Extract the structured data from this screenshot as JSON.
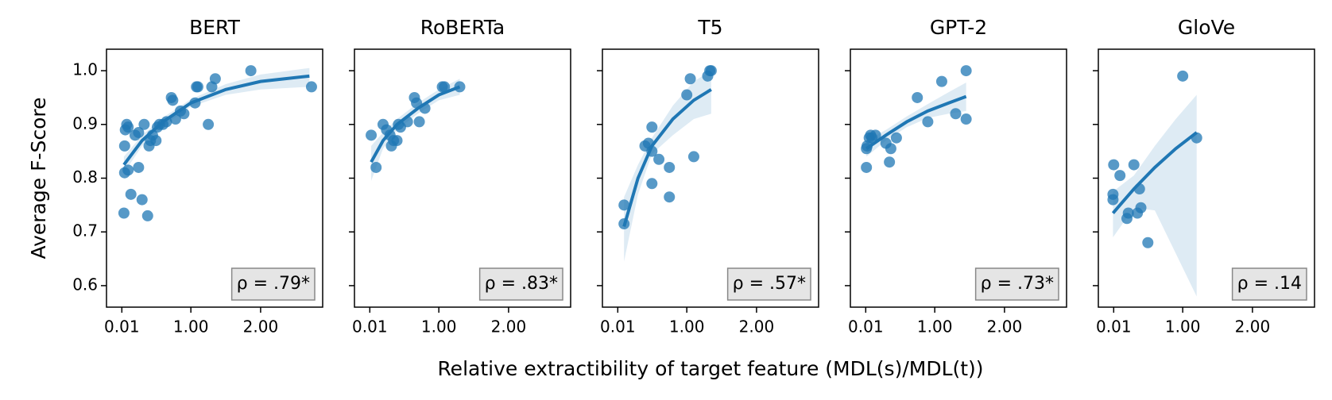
{
  "chart_data": [
    {
      "type": "scatter",
      "title": "BERT",
      "ylabel": "Average F-Score",
      "color": "#1f77b4",
      "x": [
        0.04,
        0.05,
        0.1,
        0.05,
        0.06,
        0.08,
        0.1,
        0.2,
        0.25,
        0.25,
        0.14,
        0.3,
        0.38,
        0.33,
        0.4,
        0.42,
        0.45,
        0.5,
        0.52,
        0.55,
        0.6,
        0.65,
        0.72,
        0.74,
        0.78,
        0.85,
        0.9,
        1.08,
        1.1,
        1.06,
        1.25,
        1.3,
        1.35,
        1.86,
        2.73
      ],
      "y": [
        0.735,
        0.81,
        0.815,
        0.86,
        0.89,
        0.9,
        0.895,
        0.88,
        0.885,
        0.82,
        0.77,
        0.76,
        0.73,
        0.9,
        0.86,
        0.87,
        0.88,
        0.87,
        0.895,
        0.9,
        0.9,
        0.905,
        0.95,
        0.945,
        0.91,
        0.925,
        0.92,
        0.97,
        0.97,
        0.94,
        0.9,
        0.97,
        0.985,
        1.0,
        0.97
      ],
      "fit": {
        "x": [
          0.04,
          0.3,
          0.6,
          1.0,
          1.5,
          2.0,
          2.7
        ],
        "y": [
          0.825,
          0.87,
          0.905,
          0.94,
          0.965,
          0.98,
          0.99
        ]
      },
      "band": {
        "x": [
          0.04,
          0.3,
          0.6,
          1.0,
          1.5,
          2.0,
          2.7
        ],
        "lower": [
          0.81,
          0.86,
          0.897,
          0.933,
          0.955,
          0.965,
          0.97
        ],
        "upper": [
          0.84,
          0.88,
          0.913,
          0.947,
          0.975,
          0.993,
          1.005
        ]
      },
      "annotation": "ρ = .79*",
      "xlim": [
        -0.21,
        2.89
      ],
      "ylim": [
        0.56,
        1.04
      ],
      "xticks": [
        {
          "value": 0.01,
          "label": "0.01"
        },
        {
          "value": 1,
          "label": "1.00"
        },
        {
          "value": 2,
          "label": "2.00"
        }
      ],
      "yticks": [
        0.6,
        0.7,
        0.8,
        0.9,
        {
          "value": 1,
          "label": "1.0"
        }
      ]
    },
    {
      "type": "scatter",
      "title": "RoBERTa",
      "color": "#1f77b4",
      "x": [
        0.03,
        0.1,
        0.2,
        0.25,
        0.3,
        0.32,
        0.35,
        0.4,
        0.42,
        0.45,
        0.55,
        0.65,
        0.68,
        0.72,
        0.8,
        1.05,
        1.08,
        1.3
      ],
      "y": [
        0.88,
        0.82,
        0.9,
        0.89,
        0.88,
        0.86,
        0.87,
        0.87,
        0.9,
        0.895,
        0.905,
        0.95,
        0.94,
        0.905,
        0.93,
        0.97,
        0.97,
        0.97
      ],
      "fit": {
        "x": [
          0.03,
          0.2,
          0.4,
          0.7,
          1.0,
          1.3
        ],
        "y": [
          0.83,
          0.87,
          0.9,
          0.93,
          0.955,
          0.97
        ]
      },
      "band": {
        "x": [
          0.03,
          0.2,
          0.4,
          0.7,
          1.0,
          1.3
        ],
        "lower": [
          0.795,
          0.855,
          0.89,
          0.92,
          0.945,
          0.955
        ],
        "upper": [
          0.86,
          0.885,
          0.91,
          0.94,
          0.965,
          0.985
        ]
      },
      "annotation": "ρ = .83*",
      "xlim": [
        -0.21,
        2.89
      ],
      "ylim": [
        0.56,
        1.04
      ],
      "xticks": [
        {
          "value": 0.01,
          "label": "0.01"
        },
        {
          "value": 1,
          "label": "1.00"
        },
        {
          "value": 2,
          "label": "2.00"
        }
      ]
    },
    {
      "type": "scatter",
      "title": "T5",
      "xlabel": "Relative extractibility of target feature (MDL(s)/MDL(t))",
      "color": "#1f77b4",
      "x": [
        0.1,
        0.1,
        0.4,
        0.45,
        0.5,
        0.5,
        0.5,
        0.6,
        0.75,
        0.75,
        1.0,
        1.05,
        1.1,
        1.3,
        1.33,
        1.35
      ],
      "y": [
        0.75,
        0.715,
        0.86,
        0.865,
        0.85,
        0.895,
        0.79,
        0.835,
        0.82,
        0.765,
        0.955,
        0.985,
        0.84,
        0.99,
        1.0,
        1.0
      ],
      "fit": {
        "x": [
          0.1,
          0.3,
          0.5,
          0.8,
          1.1,
          1.35
        ],
        "y": [
          0.71,
          0.8,
          0.86,
          0.91,
          0.945,
          0.965
        ]
      },
      "band": {
        "x": [
          0.1,
          0.3,
          0.5,
          0.8,
          1.1,
          1.35
        ],
        "lower": [
          0.645,
          0.77,
          0.845,
          0.88,
          0.91,
          0.92
        ],
        "upper": [
          0.765,
          0.825,
          0.875,
          0.935,
          0.98,
          1.0
        ]
      },
      "annotation": "ρ = .57*",
      "xlim": [
        -0.21,
        2.89
      ],
      "ylim": [
        0.56,
        1.04
      ],
      "xticks": [
        {
          "value": 0.01,
          "label": "0.01"
        },
        {
          "value": 1,
          "label": "1.00"
        },
        {
          "value": 2,
          "label": "2.00"
        }
      ]
    },
    {
      "type": "scatter",
      "title": "GPT-2",
      "color": "#1f77b4",
      "x": [
        0.02,
        0.02,
        0.03,
        0.06,
        0.08,
        0.1,
        0.15,
        0.3,
        0.35,
        0.37,
        0.45,
        0.75,
        0.9,
        1.1,
        1.3,
        1.45,
        1.45
      ],
      "y": [
        0.82,
        0.855,
        0.86,
        0.875,
        0.88,
        0.875,
        0.88,
        0.865,
        0.83,
        0.855,
        0.875,
        0.95,
        0.905,
        0.98,
        0.92,
        0.91,
        1.0
      ],
      "fit": {
        "x": [
          0.02,
          0.3,
          0.6,
          0.9,
          1.2,
          1.45
        ],
        "y": [
          0.855,
          0.88,
          0.905,
          0.925,
          0.94,
          0.952
        ]
      },
      "band": {
        "x": [
          0.02,
          0.3,
          0.6,
          0.9,
          1.2,
          1.45
        ],
        "lower": [
          0.84,
          0.87,
          0.895,
          0.912,
          0.92,
          0.925
        ],
        "upper": [
          0.87,
          0.89,
          0.915,
          0.938,
          0.96,
          0.978
        ]
      },
      "annotation": "ρ = .73*",
      "xlim": [
        -0.21,
        2.89
      ],
      "ylim": [
        0.56,
        1.04
      ],
      "xticks": [
        {
          "value": 0.01,
          "label": "0.01"
        },
        {
          "value": 1,
          "label": "1.00"
        },
        {
          "value": 2,
          "label": "2.00"
        }
      ]
    },
    {
      "type": "scatter",
      "title": "GloVe",
      "color": "#1f77b4",
      "x": [
        0.0,
        0.0,
        0.01,
        0.1,
        0.2,
        0.22,
        0.3,
        0.35,
        0.38,
        0.4,
        0.5,
        1.0,
        1.2
      ],
      "y": [
        0.77,
        0.76,
        0.825,
        0.805,
        0.725,
        0.735,
        0.825,
        0.735,
        0.78,
        0.745,
        0.68,
        0.99,
        0.875
      ],
      "fit": {
        "x": [
          0.0,
          0.3,
          0.6,
          0.9,
          1.2
        ],
        "y": [
          0.735,
          0.78,
          0.82,
          0.855,
          0.885
        ]
      },
      "band": {
        "x": [
          0.0,
          0.3,
          0.6,
          0.9,
          1.2
        ],
        "lower": [
          0.69,
          0.745,
          0.74,
          0.66,
          0.58
        ],
        "upper": [
          0.775,
          0.805,
          0.86,
          0.91,
          0.955
        ]
      },
      "annotation": "ρ = .14",
      "xlim": [
        -0.21,
        2.89
      ],
      "ylim": [
        0.56,
        1.04
      ],
      "xticks": [
        {
          "value": 0.01,
          "label": "0.01"
        },
        {
          "value": 1,
          "label": "1.00"
        },
        {
          "value": 2,
          "label": "2.00"
        }
      ]
    }
  ]
}
